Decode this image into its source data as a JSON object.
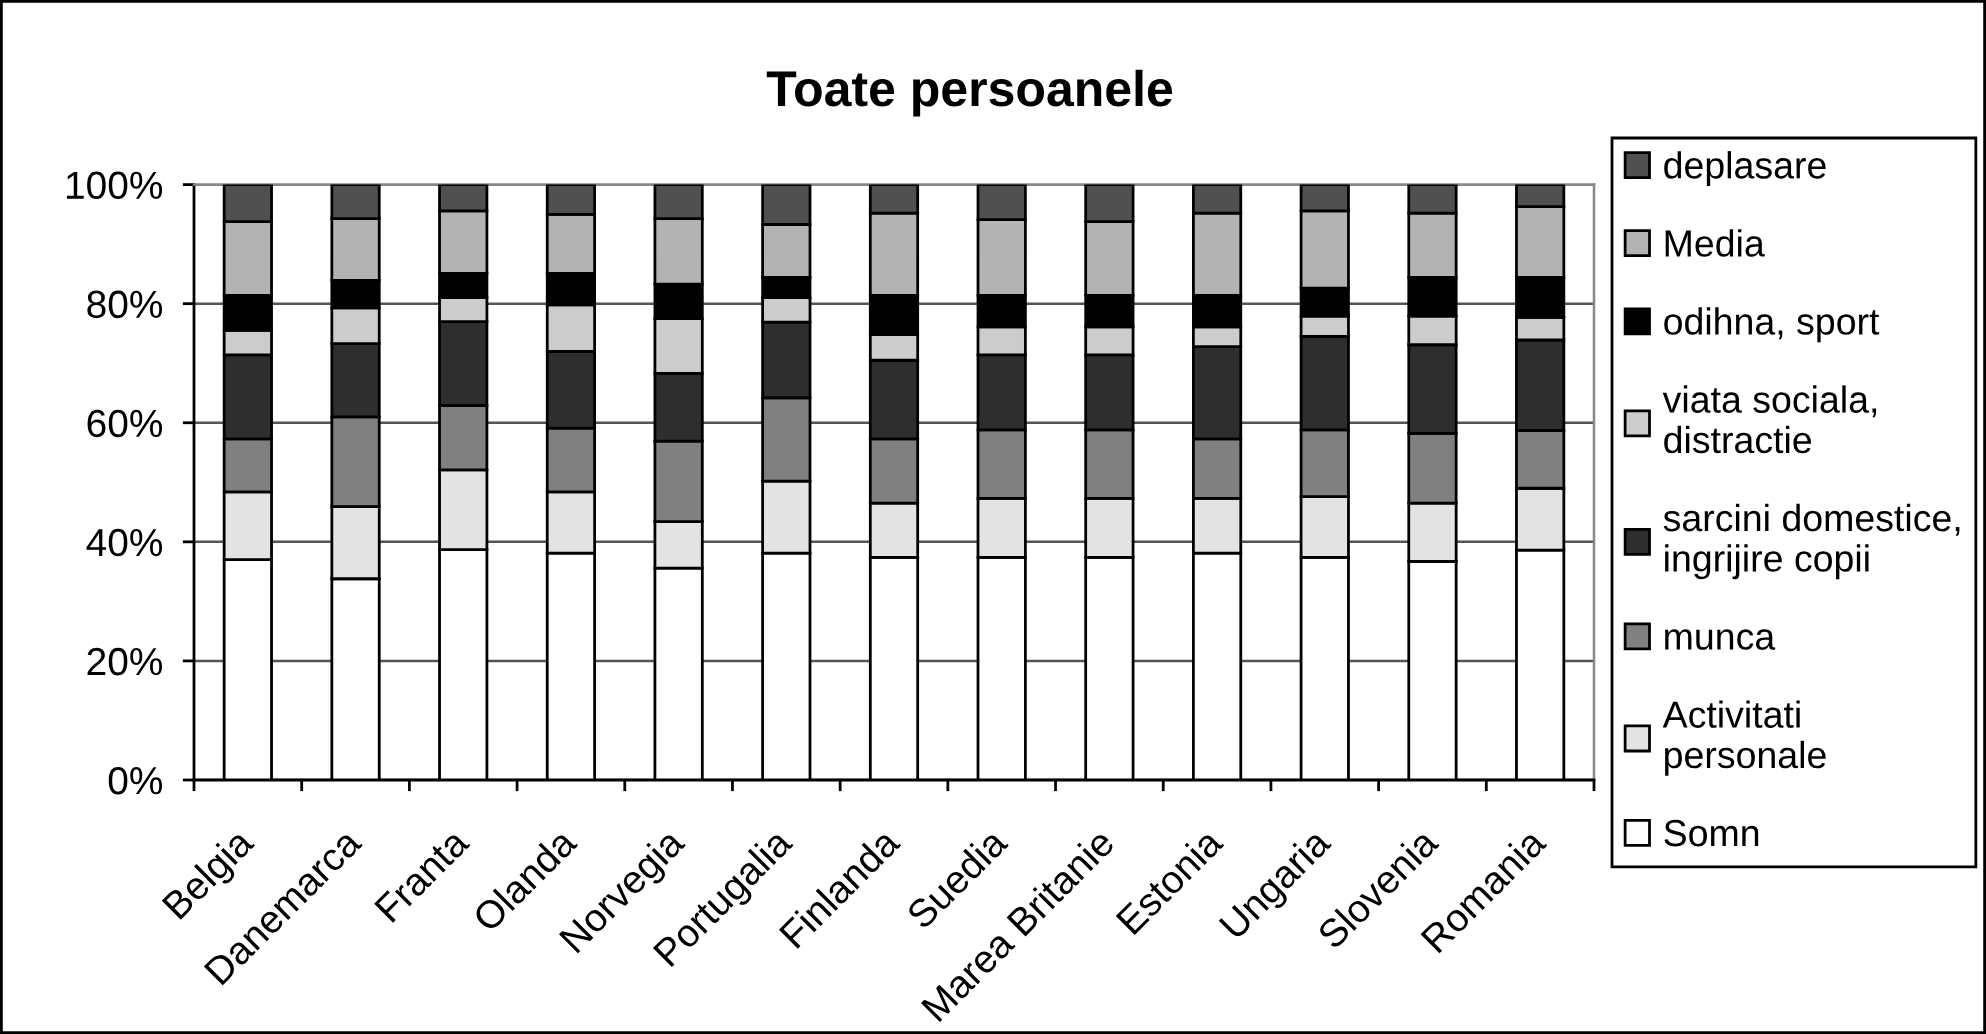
{
  "chart_data": {
    "type": "bar",
    "title": "Toate persoanele",
    "stacked": true,
    "grid": "y",
    "legend": "right",
    "categories": [
      "Belgia",
      "Danemarca",
      "Franta",
      "Olanda",
      "Norvegia",
      "Portugalia",
      "Finlanda",
      "Suedia",
      "Marea Britanie",
      "Estonia",
      "Ungaria",
      "Slovenia",
      "Romania"
    ],
    "ylim": [
      0,
      100
    ],
    "yticks": [
      {
        "value": 0,
        "label": "0%"
      },
      {
        "value": 20,
        "label": "20%"
      },
      {
        "value": 40,
        "label": "40%"
      },
      {
        "value": 60,
        "label": "60%"
      },
      {
        "value": 80,
        "label": "80%"
      },
      {
        "value": 100,
        "label": "100%"
      }
    ],
    "series": [
      {
        "name": "Somn",
        "color": "#ffffff",
        "values": [
          37.0,
          33.8,
          38.7,
          38.1,
          35.6,
          38.1,
          37.4,
          37.4,
          37.4,
          38.1,
          37.4,
          36.7,
          38.6
        ]
      },
      {
        "name": "Activitati\npersonale",
        "color": "#e3e3e3",
        "values": [
          11.4,
          12.1,
          13.4,
          10.3,
          7.8,
          12.1,
          9.1,
          9.9,
          9.9,
          9.2,
          10.2,
          9.8,
          10.4
        ]
      },
      {
        "name": "munca",
        "color": "#808080",
        "values": [
          8.9,
          15.1,
          10.8,
          10.7,
          13.5,
          14.0,
          10.8,
          11.5,
          11.5,
          10.0,
          11.2,
          11.7,
          9.7
        ]
      },
      {
        "name": "sarcini domestice,\ningrijire copii",
        "color": "#2e2e2e",
        "values": [
          14.1,
          12.3,
          14.1,
          12.9,
          11.4,
          12.7,
          13.2,
          12.6,
          12.6,
          15.5,
          15.7,
          14.9,
          15.2
        ]
      },
      {
        "name": "viata sociala,\ndistractie",
        "color": "#cccccc",
        "values": [
          4.1,
          6.0,
          4.0,
          7.8,
          9.2,
          4.1,
          4.3,
          4.7,
          4.7,
          3.3,
          3.4,
          4.8,
          3.8
        ]
      },
      {
        "name": "odihna, sport",
        "color": "#000000",
        "values": [
          5.9,
          4.6,
          4.1,
          5.3,
          5.8,
          3.4,
          6.6,
          5.3,
          5.3,
          5.3,
          4.7,
          6.5,
          6.7
        ]
      },
      {
        "name": "Media",
        "color": "#b3b3b3",
        "values": [
          12.4,
          10.4,
          10.5,
          9.9,
          11.0,
          8.9,
          13.8,
          12.7,
          12.4,
          13.8,
          13.0,
          10.8,
          11.9
        ]
      },
      {
        "name": "deplasare",
        "color": "#505050",
        "values": [
          6.2,
          5.7,
          4.4,
          5.0,
          5.7,
          6.7,
          4.8,
          5.9,
          6.2,
          4.8,
          4.4,
          4.8,
          3.7
        ]
      }
    ]
  }
}
